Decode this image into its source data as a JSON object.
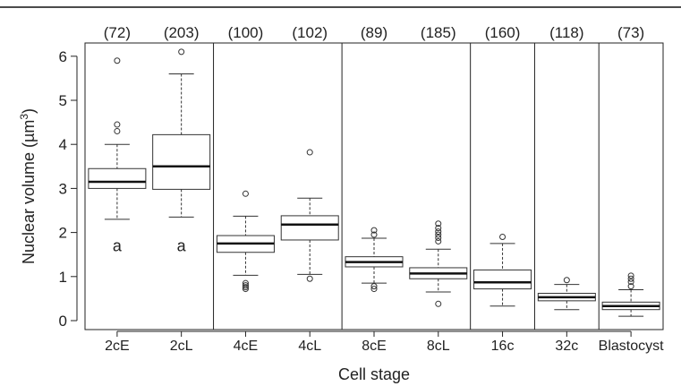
{
  "chart_data": {
    "type": "box",
    "xlabel": "Cell stage",
    "ylabel_main": "Nuclear volume (µm",
    "ylabel_sup": "3",
    "ylabel_close": ")",
    "ylim": [
      0,
      6.4
    ],
    "yticks": [
      "0",
      "1",
      "2",
      "3",
      "4",
      "5",
      "6"
    ],
    "ytick_values": [
      0,
      1,
      2,
      3,
      4,
      5,
      6
    ],
    "categories": [
      "2cE",
      "2cL",
      "4cE",
      "4cL",
      "8cE",
      "8cL",
      "16c",
      "32c",
      "Blastocyst"
    ],
    "counts": [
      "(72)",
      "(203)",
      "(100)",
      "(102)",
      "(89)",
      "(185)",
      "(160)",
      "(118)",
      "(73)"
    ],
    "annotations": [
      {
        "category": "2cE",
        "text": "a",
        "y": 1.7
      },
      {
        "category": "2cL",
        "text": "a",
        "y": 1.7
      }
    ],
    "group_separators_after": [
      "2cL",
      "4cL",
      "8cL",
      "16c",
      "32c"
    ],
    "boxes": [
      {
        "name": "2cE",
        "whisker_low": 2.3,
        "q1": 3.0,
        "median": 3.15,
        "q3": 3.45,
        "whisker_high": 4.0,
        "outliers": [
          4.3,
          4.45,
          5.9
        ]
      },
      {
        "name": "2cL",
        "whisker_low": 2.35,
        "q1": 2.98,
        "median": 3.5,
        "q3": 4.22,
        "whisker_high": 5.6,
        "outliers": [
          6.1
        ]
      },
      {
        "name": "4cE",
        "whisker_low": 1.03,
        "q1": 1.55,
        "median": 1.75,
        "q3": 1.93,
        "whisker_high": 2.37,
        "outliers": [
          0.72,
          0.76,
          0.8,
          0.85,
          2.88
        ]
      },
      {
        "name": "4cL",
        "whisker_low": 1.05,
        "q1": 1.83,
        "median": 2.18,
        "q3": 2.38,
        "whisker_high": 2.78,
        "outliers": [
          0.95,
          3.82
        ]
      },
      {
        "name": "8cE",
        "whisker_low": 0.85,
        "q1": 1.22,
        "median": 1.33,
        "q3": 1.45,
        "whisker_high": 1.87,
        "outliers": [
          0.72,
          0.78,
          1.95,
          2.05
        ]
      },
      {
        "name": "8cL",
        "whisker_low": 0.65,
        "q1": 0.95,
        "median": 1.07,
        "q3": 1.2,
        "whisker_high": 1.62,
        "outliers": [
          0.38,
          1.8,
          1.88,
          1.95,
          2.02,
          2.1,
          2.2
        ]
      },
      {
        "name": "16c",
        "whisker_low": 0.33,
        "q1": 0.72,
        "median": 0.87,
        "q3": 1.15,
        "whisker_high": 1.75,
        "outliers": [
          1.9
        ]
      },
      {
        "name": "32c",
        "whisker_low": 0.25,
        "q1": 0.45,
        "median": 0.53,
        "q3": 0.62,
        "whisker_high": 0.82,
        "outliers": [
          0.92
        ]
      },
      {
        "name": "Blastocyst",
        "whisker_low": 0.1,
        "q1": 0.25,
        "median": 0.33,
        "q3": 0.42,
        "whisker_high": 0.7,
        "outliers": [
          0.78,
          0.88,
          0.95,
          1.02
        ]
      }
    ]
  }
}
